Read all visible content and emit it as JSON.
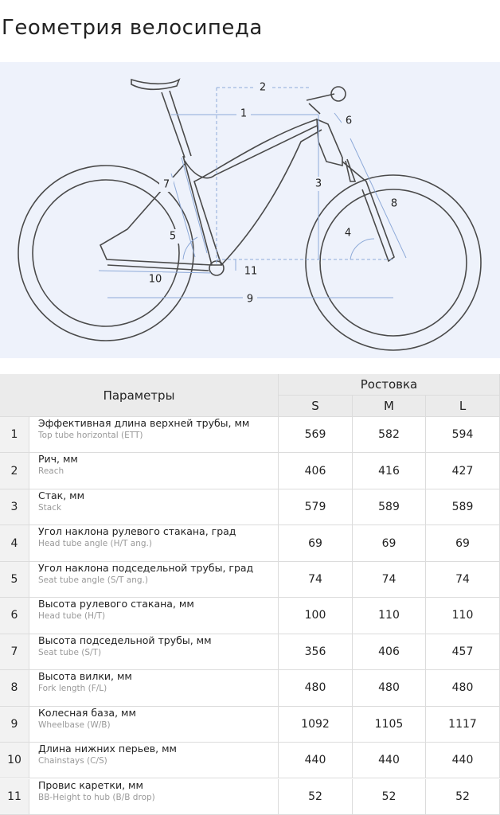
{
  "title": "Геометрия велосипеда",
  "diagram": {
    "labels": [
      "2",
      "1",
      "6",
      "7",
      "3",
      "8",
      "5",
      "4",
      "10",
      "11",
      "9"
    ]
  },
  "table": {
    "header": {
      "params": "Параметры",
      "sizing": "Ростовка",
      "sizes": [
        "S",
        "M",
        "L"
      ]
    },
    "rows": [
      {
        "num": 1,
        "name": "Эффективная длина верхней трубы, мм",
        "sub": "Top tube horizontal (ETT)",
        "values": [
          569,
          582,
          594
        ]
      },
      {
        "num": 2,
        "name": "Рич, мм",
        "sub": "Reach",
        "values": [
          406,
          416,
          427
        ]
      },
      {
        "num": 3,
        "name": "Стак, мм",
        "sub": "Stack",
        "values": [
          579,
          589,
          589
        ]
      },
      {
        "num": 4,
        "name": "Угол наклона рулевого стакана, град",
        "sub": "Head tube angle (H/T ang.)",
        "values": [
          69,
          69,
          69
        ]
      },
      {
        "num": 5,
        "name": "Угол наклона подседельной трубы, град",
        "sub": "Seat tube angle (S/T ang.)",
        "values": [
          74,
          74,
          74
        ]
      },
      {
        "num": 6,
        "name": "Высота рулевого стакана, мм",
        "sub": "Head tube (H/T)",
        "values": [
          100,
          110,
          110
        ]
      },
      {
        "num": 7,
        "name": "Высота подседельной трубы, мм",
        "sub": "Seat tube (S/T)",
        "values": [
          356,
          406,
          457
        ]
      },
      {
        "num": 8,
        "name": "Высота вилки, мм",
        "sub": "Fork length (F/L)",
        "values": [
          480,
          480,
          480
        ]
      },
      {
        "num": 9,
        "name": "Колесная база, мм",
        "sub": "Wheelbase (W/B)",
        "values": [
          1092,
          1105,
          1117
        ]
      },
      {
        "num": 10,
        "name": "Длина нижних перьев, мм",
        "sub": "Chainstays (C/S)",
        "values": [
          440,
          440,
          440
        ]
      },
      {
        "num": 11,
        "name": "Провис каретки, мм",
        "sub": "BB-Height to hub (B/B drop)",
        "values": [
          52,
          52,
          52
        ]
      }
    ]
  }
}
